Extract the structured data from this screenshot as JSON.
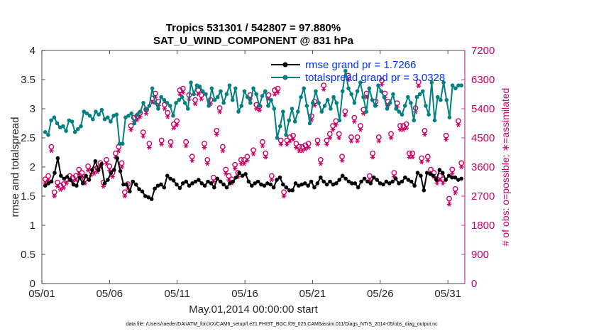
{
  "chart_data": {
    "type": "line",
    "title_line1": "Tropics 531301 / 542807 = 97.880%",
    "title_line2": "SAT_U_WIND_COMPONENT @ 831 hPa",
    "xlabel": "May.01,2014 00:00:00 start",
    "ylabel_left": "rmse and totalspread",
    "ylabel_right": "# of obs: o=possible; ∗=assimilated",
    "footnote": "data file: /Users/raeder/DAI/ATM_forcXX/CAM6_setup/f.e21.FHIST_BGC.f09_025.CAM6assim.011/Diags_NTrS_2014-05/obs_diag_output.nc",
    "xlim": [
      0,
      31.25
    ],
    "x_ticks": [
      0,
      5,
      10,
      15,
      20,
      25,
      30
    ],
    "x_tick_labels": [
      "05/01",
      "05/06",
      "05/11",
      "05/16",
      "05/21",
      "05/26",
      "05/31"
    ],
    "ylim_left": [
      0,
      4
    ],
    "y_left_ticks": [
      "0",
      "0.5",
      "1",
      "1.5",
      "2",
      "2.5",
      "3",
      "3.5",
      "4"
    ],
    "ylim_right": [
      0,
      7200
    ],
    "y_right_ticks": [
      "0",
      "900",
      "1800",
      "2700",
      "3600",
      "4500",
      "5400",
      "6300",
      "7200"
    ],
    "legend": [
      {
        "name": "rmse grand pr = 1.7266",
        "color": "#000000"
      },
      {
        "name": "totalspread grand pr = 3.0328",
        "color": "#008080"
      }
    ],
    "colors": {
      "rmse": "#000000",
      "spread": "#008080",
      "obs": "#cc0066",
      "legend_text": "#0033ff"
    },
    "series": [
      {
        "name": "rmse",
        "axis": "left",
        "values": [
          1.68,
          1.72,
          1.75,
          1.9,
          2.15,
          1.85,
          1.8,
          1.83,
          1.78,
          1.7,
          1.68,
          1.82,
          1.72,
          1.85,
          1.78,
          1.95,
          2.1,
          1.95,
          2.05,
          1.72,
          1.78,
          1.9,
          1.95,
          2.15,
          1.93,
          1.7,
          1.7,
          1.58,
          1.75,
          1.7,
          1.62,
          1.58,
          1.5,
          1.48,
          1.45,
          1.63,
          1.68,
          1.7,
          1.65,
          1.85,
          1.8,
          1.77,
          1.7,
          1.64,
          1.72,
          1.75,
          1.68,
          1.72,
          1.75,
          1.78,
          1.72,
          1.68,
          1.75,
          1.72,
          1.65,
          1.8,
          1.75,
          1.7,
          1.65,
          1.72,
          1.75,
          1.82,
          1.9,
          1.85,
          1.88,
          1.75,
          1.68,
          1.72,
          1.75,
          1.7,
          1.68,
          1.72,
          1.7,
          1.65,
          1.78,
          1.82,
          1.7,
          1.65,
          1.6,
          1.6,
          1.72,
          1.68,
          1.7,
          1.72,
          1.68,
          1.75,
          1.65,
          1.72,
          1.82,
          1.75,
          1.7,
          1.75,
          1.7,
          1.72,
          1.78,
          1.85,
          1.8,
          1.75,
          1.72,
          1.72,
          1.65,
          1.75,
          1.8,
          1.75,
          1.72,
          1.82,
          1.78,
          1.72,
          1.7,
          1.75,
          1.72,
          1.75,
          1.8,
          1.72,
          1.75,
          1.82,
          1.78,
          1.75,
          1.68,
          1.9,
          1.85,
          1.6,
          1.9,
          1.88,
          1.85,
          1.78,
          1.95,
          1.9,
          1.78,
          1.85,
          1.82,
          1.82,
          1.78,
          1.8
        ]
      },
      {
        "name": "totalspread",
        "axis": "left",
        "values": [
          2.6,
          2.55,
          2.8,
          2.85,
          2.75,
          2.68,
          2.7,
          2.62,
          2.8,
          2.78,
          2.6,
          2.65,
          2.7,
          2.95,
          2.92,
          2.88,
          2.82,
          2.95,
          2.9,
          2.98,
          2.82,
          2.85,
          2.78,
          2.88,
          2.9,
          2.4,
          2.4,
          2.85,
          2.88,
          2.92,
          2.75,
          2.9,
          2.95,
          3.1,
          2.98,
          3.05,
          3.35,
          3.1,
          3.0,
          3.2,
          3.15,
          3.1,
          3.05,
          2.88,
          3.1,
          3.15,
          3.2,
          3.1,
          3.0,
          3.45,
          3.25,
          3.4,
          3.38,
          3.3,
          3.25,
          3.05,
          3.35,
          3.15,
          3.2,
          3.3,
          3.1,
          3.25,
          3.4,
          3.15,
          3.35,
          2.95,
          3.05,
          3.3,
          3.2,
          3.1,
          3.35,
          3.25,
          3.05,
          3.22,
          3.3,
          3.05,
          3.15,
          3.0,
          2.5,
          2.7,
          2.95,
          2.55,
          2.8,
          3.0,
          2.78,
          2.95,
          3.2,
          3.35,
          3.05,
          2.75,
          3.1,
          3.3,
          3.1,
          2.95,
          3.05,
          3.15,
          3.0,
          3.2,
          3.1,
          2.8,
          3.3,
          3.65,
          3.35,
          3.25,
          3.1,
          3.3,
          3.45,
          3.2,
          2.95,
          3.35,
          3.15,
          3.05,
          3.4,
          3.3,
          3.2,
          3.0,
          3.1,
          3.25,
          3.0,
          2.95,
          2.9,
          3.05,
          3.2,
          3.1,
          2.8,
          3.2,
          3.25,
          3.3,
          3.05,
          2.9,
          3.45,
          2.8,
          3.2,
          3.15,
          3.45,
          3.15,
          2.85,
          3.4,
          3.35,
          3.4,
          3.4
        ]
      },
      {
        "name": "obs_possible",
        "axis": "right",
        "values": [
          3200,
          3300,
          4200,
          2800,
          3100,
          3000,
          3050,
          3200,
          3300,
          3250,
          3300,
          3500,
          3400,
          3200,
          3600,
          3450,
          3500,
          3550,
          3700,
          3100,
          3800,
          3600,
          3400,
          4000,
          4200,
          3700,
          2800,
          3050,
          4850,
          5100,
          5150,
          5250,
          4650,
          5350,
          4300,
          5700,
          5850,
          5600,
          4400,
          5500,
          5250,
          4350,
          4900,
          5000,
          5950,
          6000,
          4350,
          5800,
          3900,
          5650,
          5950,
          5800,
          4300,
          3800,
          5650,
          3250,
          4700,
          5400,
          4200,
          3500,
          3300,
          3200,
          3650,
          3400,
          3800,
          3800,
          3900,
          5800,
          4100,
          5500,
          5450,
          4350,
          4000,
          5800,
          3300,
          5950,
          6000,
          4400,
          2800,
          4400,
          4500,
          4550,
          4300,
          4200,
          4200,
          4250,
          4300,
          5150,
          5600,
          4400,
          3800,
          6100,
          4400,
          4600,
          4850,
          5000,
          4600,
          3900,
          5300,
          6400,
          4500,
          5100,
          4500,
          4850,
          5350,
          5850,
          3300,
          4000,
          5600,
          4500,
          6250,
          5850,
          5600,
          4600,
          3400,
          5550,
          4850,
          4850,
          4900,
          4000,
          4000,
          5400,
          6200,
          3850,
          4700,
          3900,
          3500,
          3400,
          3200,
          3300,
          3200,
          4550,
          2600,
          3500,
          2900,
          5000,
          3700
        ]
      },
      {
        "name": "obs_assimilated",
        "axis": "right",
        "values": [
          3100,
          3200,
          4100,
          2700,
          3000,
          2900,
          2950,
          3100,
          3200,
          3150,
          3200,
          3400,
          3300,
          3100,
          3500,
          3350,
          3400,
          3450,
          3600,
          3000,
          3700,
          3500,
          3300,
          3900,
          4100,
          3600,
          2700,
          2950,
          4750,
          5000,
          5050,
          5150,
          4550,
          5250,
          4200,
          5600,
          5750,
          5500,
          4300,
          5400,
          5150,
          4250,
          4800,
          4900,
          5850,
          5900,
          4250,
          5700,
          3800,
          5550,
          5850,
          5700,
          4200,
          3700,
          5550,
          3150,
          4600,
          5300,
          4100,
          3400,
          3200,
          3100,
          3550,
          3300,
          3700,
          3700,
          3800,
          5700,
          4000,
          5400,
          5350,
          4250,
          3900,
          5700,
          3200,
          5850,
          5900,
          4300,
          2700,
          4300,
          4400,
          4450,
          4200,
          4100,
          4100,
          4150,
          4200,
          5050,
          5500,
          4300,
          3700,
          6000,
          4300,
          4500,
          4750,
          4900,
          4500,
          3800,
          5200,
          6300,
          4400,
          5000,
          4400,
          4750,
          5250,
          5750,
          3200,
          3900,
          5500,
          4400,
          6150,
          5750,
          5500,
          4500,
          3300,
          5450,
          4750,
          4750,
          4800,
          3900,
          3900,
          5300,
          6100,
          3750,
          4600,
          3800,
          3400,
          3300,
          3100,
          3200,
          3100,
          4450,
          2450,
          3400,
          2800,
          4900,
          3600
        ]
      }
    ]
  }
}
